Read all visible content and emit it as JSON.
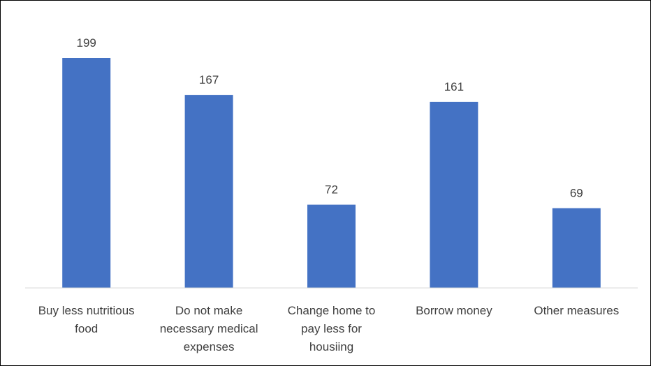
{
  "chart_data": {
    "type": "bar",
    "categories": [
      [
        "Buy less nutritious",
        "food"
      ],
      [
        "Do not make",
        "necessary medical",
        "expenses"
      ],
      [
        "Change home to",
        "pay less for",
        "housiing"
      ],
      [
        "Borrow money"
      ],
      [
        "Other measures"
      ]
    ],
    "values": [
      199,
      167,
      72,
      161,
      69
    ],
    "data_labels": [
      "199",
      "167",
      "72",
      "161",
      "69"
    ],
    "title": "",
    "xlabel": "",
    "ylabel": "",
    "ylim": [
      0,
      199
    ],
    "grid": false,
    "legend": "none",
    "bar_color": "#4472C4",
    "axis_color": "#D9D9D9",
    "text_color": "#404040"
  }
}
